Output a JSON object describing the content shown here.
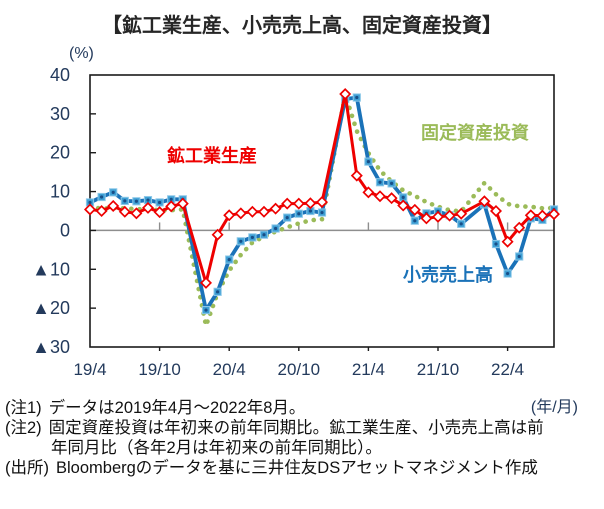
{
  "title": "【鉱工業生産、小売売上高、固定資産投資】",
  "y_unit_label": "(%)",
  "x_unit_label": "(年/月)",
  "notes": [
    {
      "label": "(注1)",
      "text": "データは2019年4月～2022年8月。"
    },
    {
      "label": "(注2)",
      "text": "固定資産投資は年初来の前年同期比。鉱工業生産、小売売上高は前年同月比（各年2月は年初来の前年同期比）。"
    },
    {
      "label": "(出所)",
      "text": "Bloombergのデータを基に三井住友DSアセットマネジメント作成"
    }
  ],
  "chart_data": {
    "type": "line",
    "title": "鉱工業生産、小売売上高、固定資産投資",
    "xlabel": "年/月",
    "ylabel": "%",
    "ylim": [
      -30,
      40
    ],
    "grid": "zero-line-only",
    "legend_position": "floating-labels",
    "axis_text_color": "#233A5C",
    "zero_line_color": "#8E8E8E",
    "frame_color": "#1A1A1A",
    "y_tick_values": [
      40,
      30,
      20,
      10,
      0,
      -10,
      -20,
      -30
    ],
    "y_tick_labels": [
      "40",
      "30",
      "20",
      "10",
      "0",
      "▲10",
      "▲20",
      "▲30"
    ],
    "x_tick_labels": [
      "19/4",
      "19/10",
      "20/4",
      "20/10",
      "21/4",
      "21/10",
      "22/4"
    ],
    "x_tick_indices": [
      0,
      6,
      12,
      18,
      24,
      30,
      36
    ],
    "x": [
      "19/4",
      "19/5",
      "19/6",
      "19/7",
      "19/8",
      "19/9",
      "19/10",
      "19/11",
      "19/12",
      "20/1",
      "20/2",
      "20/3",
      "20/4",
      "20/5",
      "20/6",
      "20/7",
      "20/8",
      "20/9",
      "20/10",
      "20/11",
      "20/12",
      "21/1",
      "21/2",
      "21/3",
      "21/4",
      "21/5",
      "21/6",
      "21/7",
      "21/8",
      "21/9",
      "21/10",
      "21/11",
      "21/12",
      "22/1",
      "22/2",
      "22/3",
      "22/4",
      "22/5",
      "22/6",
      "22/7",
      "22/8"
    ],
    "series": [
      {
        "name": "固定資産投資",
        "color": "#9BBB59",
        "style": "dotted",
        "width": 4.6,
        "marker": "none",
        "values": [
          6.1,
          5.6,
          5.8,
          5.7,
          5.5,
          5.4,
          5.2,
          5.2,
          5.4,
          null,
          -24.5,
          -16.1,
          -10.3,
          -6.3,
          -3.1,
          -1.6,
          -0.3,
          0.8,
          1.8,
          2.6,
          2.9,
          null,
          35.0,
          25.6,
          19.9,
          15.4,
          12.6,
          10.3,
          8.9,
          7.3,
          6.1,
          5.2,
          4.9,
          null,
          12.2,
          9.3,
          6.8,
          6.2,
          6.1,
          5.7,
          5.8
        ]
      },
      {
        "name": "小売売上高",
        "color": "#1A72B8",
        "style": "solid",
        "width": 3.8,
        "marker": "square",
        "marker_fill": "#3E9FD4",
        "marker_stroke": "#8CC8E8",
        "marker_dot": "#174E87",
        "values": [
          7.2,
          8.6,
          9.8,
          7.6,
          7.5,
          7.8,
          7.2,
          8.0,
          8.0,
          null,
          -20.5,
          -15.8,
          -7.5,
          -2.8,
          -1.8,
          -1.1,
          0.5,
          3.3,
          4.3,
          5.0,
          4.6,
          null,
          33.8,
          34.2,
          17.7,
          12.4,
          12.1,
          8.5,
          2.5,
          4.4,
          4.9,
          3.9,
          1.7,
          null,
          6.7,
          -3.5,
          -11.1,
          -6.7,
          3.1,
          2.7,
          5.4
        ]
      },
      {
        "name": "鉱工業生産",
        "color": "#EE0000",
        "style": "solid",
        "width": 3.0,
        "marker": "diamond",
        "marker_fill": "#FFFFFF",
        "marker_stroke": "#EE0000",
        "values": [
          5.4,
          5.0,
          6.3,
          4.8,
          4.4,
          5.8,
          4.7,
          6.2,
          6.9,
          null,
          -13.5,
          -1.1,
          3.9,
          4.4,
          4.8,
          4.8,
          5.6,
          6.9,
          6.9,
          7.0,
          7.3,
          null,
          35.1,
          14.1,
          9.8,
          8.8,
          8.3,
          6.4,
          5.3,
          3.1,
          3.5,
          3.8,
          4.3,
          null,
          7.5,
          5.0,
          -2.9,
          0.7,
          3.9,
          3.8,
          4.2
        ]
      }
    ]
  }
}
